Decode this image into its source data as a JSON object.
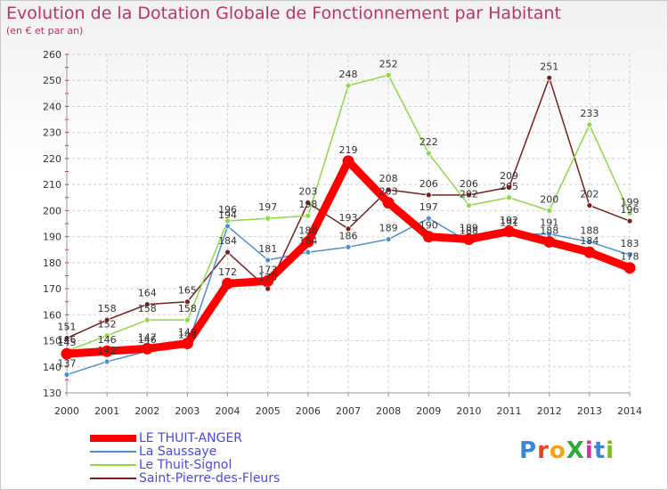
{
  "title": "Evolution de la Dotation Globale de Fonctionnement par Habitant",
  "subtitle": "(en € et par an)",
  "logo": {
    "text": "ProXiti",
    "colors": [
      "#3a87d8",
      "#e8421e",
      "#f4a21b",
      "#2eaa3a",
      "#d8309a",
      "#3a87d8",
      "#7ab82e"
    ]
  },
  "chart_data": {
    "type": "line",
    "title": "Evolution de la Dotation Globale de Fonctionnement par Habitant",
    "subtitle": "(en € et par an)",
    "xlabel": "",
    "ylabel": "",
    "ylim": [
      130,
      260
    ],
    "yticks": [
      130,
      140,
      150,
      160,
      170,
      180,
      190,
      200,
      210,
      220,
      230,
      240,
      250,
      260
    ],
    "categories": [
      "2000",
      "2001",
      "2002",
      "2003",
      "2004",
      "2005",
      "2006",
      "2007",
      "2008",
      "2009",
      "2010",
      "2011",
      "2012",
      "2013",
      "2014"
    ],
    "legend_position": "bottom-left",
    "series": [
      {
        "name": "LE THUIT-ANGER",
        "color": "#ff0000",
        "style": "thick",
        "values": [
          145,
          146,
          147,
          149,
          172,
          173,
          188,
          219,
          203,
          190,
          189,
          192,
          188,
          184,
          178
        ],
        "labels": [
          "145",
          "146",
          "147",
          "149",
          "172",
          "173",
          "188",
          "219",
          "203",
          "190",
          "189",
          "192",
          "188",
          "184",
          "178"
        ]
      },
      {
        "name": "La Saussaye",
        "color": "#4f8fd0",
        "style": "thin",
        "values": [
          137,
          142,
          146,
          148,
          194,
          181,
          184,
          186,
          189,
          197,
          188,
          191,
          191,
          188,
          183
        ],
        "labels": [
          "137",
          "142",
          "146",
          "148",
          "194",
          "181",
          "184",
          "186",
          "189",
          "197",
          "188",
          "191",
          "191",
          "188",
          "183"
        ]
      },
      {
        "name": "Le Thuit-Signol",
        "color": "#8fd848",
        "style": "thin",
        "values": [
          146,
          152,
          158,
          158,
          196,
          197,
          198,
          248,
          252,
          222,
          202,
          205,
          200,
          233,
          199
        ],
        "labels": [
          "146",
          "152",
          "158",
          "158",
          "196",
          "197",
          "198",
          "248",
          "252",
          "222",
          "202",
          "205",
          "200",
          "233",
          "199"
        ]
      },
      {
        "name": "Saint-Pierre-des-Fleurs",
        "color": "#7a1e1e",
        "style": "thin",
        "values": [
          151,
          158,
          164,
          165,
          184,
          170,
          203,
          193,
          208,
          206,
          206,
          209,
          251,
          202,
          196
        ],
        "labels": [
          "151",
          "158",
          "164",
          "165",
          "184",
          "170",
          "203",
          "193",
          "208",
          "206",
          "206",
          "209",
          "251",
          "202",
          "196"
        ]
      }
    ]
  }
}
